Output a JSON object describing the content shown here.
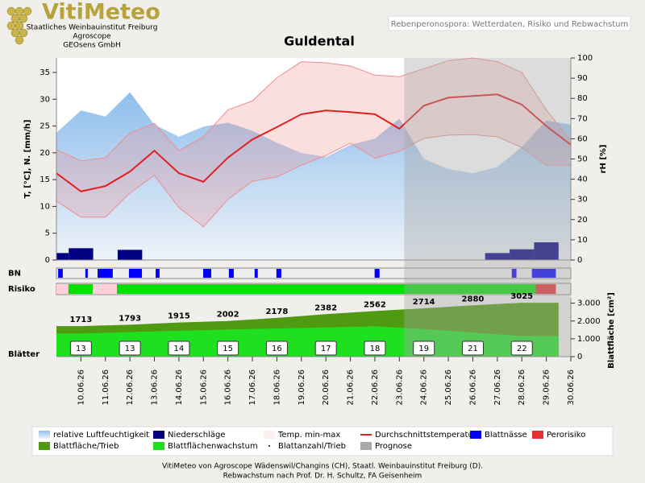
{
  "header": {
    "logo": "VitiMeteo",
    "lines": [
      "Staatliches Weinbauinstitut Freiburg",
      "Agroscope",
      "GEOsens GmbH"
    ],
    "subtitle": "Rebenperonospora: Wetterdaten, Risiko und Rebwachstum"
  },
  "chart_data": [
    {
      "type": "weather",
      "title": "Guldental",
      "y_label": "T, [°C], N. [mm/h]",
      "y2_label": "rH [%]",
      "x": [
        9,
        10,
        11,
        12,
        13,
        14,
        15,
        16,
        17,
        18,
        19,
        20,
        21,
        22,
        23,
        24,
        25,
        26,
        27,
        28,
        29,
        30
      ],
      "xlim": [
        9,
        30
      ],
      "xticks": [
        {
          "value": 10,
          "label": "10.06.26"
        },
        {
          "value": 11,
          "label": "11.06.26"
        },
        {
          "value": 12,
          "label": "12.06.26"
        },
        {
          "value": 13,
          "label": "13.06.26"
        },
        {
          "value": 14,
          "label": "14.06.26"
        },
        {
          "value": 15,
          "label": "15.06.26"
        },
        {
          "value": 16,
          "label": "16.06.26"
        },
        {
          "value": 17,
          "label": "17.06.26"
        },
        {
          "value": 18,
          "label": "18.06.26"
        },
        {
          "value": 19,
          "label": "19.06.26"
        },
        {
          "value": 20,
          "label": "20.06.26"
        },
        {
          "value": 21,
          "label": "21.06.26"
        },
        {
          "value": 22,
          "label": "22.06.26"
        },
        {
          "value": 23,
          "label": "23.06.26"
        },
        {
          "value": 24,
          "label": "24.06.26"
        },
        {
          "value": 25,
          "label": "25.06.26"
        },
        {
          "value": 26,
          "label": "26.06.26"
        },
        {
          "value": 27,
          "label": "27.06.26"
        },
        {
          "value": 28,
          "label": "28.06.26"
        },
        {
          "value": 29,
          "label": "29.06.26"
        },
        {
          "value": 30,
          "label": "30.06.26"
        }
      ],
      "ylim": [
        0,
        37.7
      ],
      "yticks": [
        0,
        5,
        10,
        15,
        20,
        25,
        30,
        35
      ],
      "y2lim": [
        0,
        100
      ],
      "y2ticks": [
        0,
        10,
        20,
        30,
        40,
        50,
        60,
        70,
        80,
        90,
        100
      ],
      "series": [
        {
          "name": "relative Luftfeuchtigkeit",
          "kind": "area",
          "axis": "y2",
          "color": "#8fbeec",
          "values": [
            63,
            74,
            71,
            83,
            67,
            61,
            66,
            68,
            64,
            58,
            53,
            51,
            57,
            60,
            70,
            50,
            45,
            43,
            46,
            56,
            69,
            67
          ]
        },
        {
          "name": "Niederschläge",
          "kind": "bar",
          "color": "#000080",
          "values": [
            1.3,
            2.2,
            0,
            1.9,
            0,
            0,
            0,
            0,
            0,
            0,
            0,
            0,
            0,
            0,
            0,
            0,
            0,
            0,
            1.3,
            2.0,
            3.3,
            0
          ]
        },
        {
          "name": "Temp. min-max",
          "kind": "band",
          "color": "#f08c8c",
          "low": [
            11,
            8,
            8,
            12.5,
            15.8,
            9.8,
            6.2,
            11.3,
            14.7,
            15.5,
            17.7,
            19.5,
            21.8,
            19,
            20.3,
            22.7,
            23.3,
            23.4,
            23,
            21,
            17.7,
            17.7
          ],
          "high": [
            20.6,
            18.5,
            19.1,
            23.7,
            25.5,
            20.4,
            23,
            28,
            29.7,
            34,
            37,
            36.8,
            36.2,
            34.5,
            34.2,
            35.7,
            37.2,
            37.7,
            37,
            35,
            28,
            22.2
          ]
        },
        {
          "name": "Durchschnittstemperatur",
          "kind": "line",
          "color": "#e02020",
          "values": [
            16.2,
            12.8,
            13.8,
            16.5,
            20.4,
            16.2,
            14.6,
            19.1,
            22.5,
            24.8,
            27.2,
            27.9,
            27.6,
            27.2,
            24.5,
            28.8,
            30.3,
            30.6,
            30.9,
            29,
            25,
            21.5
          ]
        }
      ],
      "forecast": {
        "name": "Prognose",
        "from": 23.2,
        "color": "#a8a8a8"
      }
    },
    {
      "type": "strip",
      "label": "BN",
      "series": [
        {
          "name": "Blattnässe",
          "kind": "intervals",
          "color": "#0000ff",
          "intervals": [
            [
              9.07,
              9.26
            ],
            [
              10.18,
              10.28
            ],
            [
              10.68,
              11.3
            ],
            [
              11.96,
              12.49
            ],
            [
              13.05,
              13.21
            ],
            [
              14.99,
              15.32
            ],
            [
              16.04,
              16.24
            ],
            [
              17.09,
              17.22
            ],
            [
              17.98,
              18.18
            ],
            [
              21.99,
              22.19
            ],
            [
              27.59,
              27.78
            ],
            [
              28.41,
              29.39
            ]
          ]
        }
      ]
    },
    {
      "type": "strip",
      "label": "Risiko",
      "segments": [
        {
          "from": 9,
          "to": 9.49,
          "color": "#ffd0d8"
        },
        {
          "from": 9.49,
          "to": 10.48,
          "color": "#00e000"
        },
        {
          "from": 10.48,
          "to": 11.47,
          "color": "#ffd0d8"
        },
        {
          "from": 11.47,
          "to": 28.57,
          "color": "#00e000"
        }
      ],
      "series": [
        {
          "name": "Perorisiko",
          "kind": "intervals",
          "color": "#e53030",
          "intervals": [
            [
              28.57,
              29.39
            ]
          ]
        }
      ]
    },
    {
      "type": "growth",
      "label": "Blätter",
      "y2_label": "Blattfläche [cm²]",
      "x": [
        10,
        12,
        14,
        16,
        18,
        20,
        22,
        24,
        26,
        28
      ],
      "y2lim": [
        0,
        3300
      ],
      "y2ticks": [
        0,
        {
          "value": 1000,
          "label": "1.000"
        },
        {
          "value": 2000,
          "label": "2.000"
        },
        {
          "value": 3000,
          "label": "3.000"
        }
      ],
      "series": [
        {
          "name": "Blattfläche/Trieb",
          "kind": "area",
          "color": "#4f9a10",
          "values": [
            1713,
            1793,
            1915,
            2002,
            2178,
            2382,
            2562,
            2714,
            2880,
            3025
          ]
        },
        {
          "name": "Blattflächenwachstum",
          "kind": "area",
          "color": "#1ee01e",
          "values": [
            1300,
            1380,
            1450,
            1520,
            1580,
            1640,
            1700,
            1550,
            1350,
            1150
          ]
        },
        {
          "name": "Blattanzahl/Trieb",
          "kind": "count",
          "color": "#000000",
          "values": [
            13,
            13,
            14,
            15,
            16,
            17,
            18,
            19,
            21,
            22
          ]
        }
      ]
    }
  ],
  "footer": [
    "VitiMeteo von Agroscope Wädenswil/Changins (CH), Staatl. Weinbauinstitut Freiburg (D).",
    "Rebwachstum nach Prof. Dr. H. Schultz, FA Geisenheim"
  ]
}
